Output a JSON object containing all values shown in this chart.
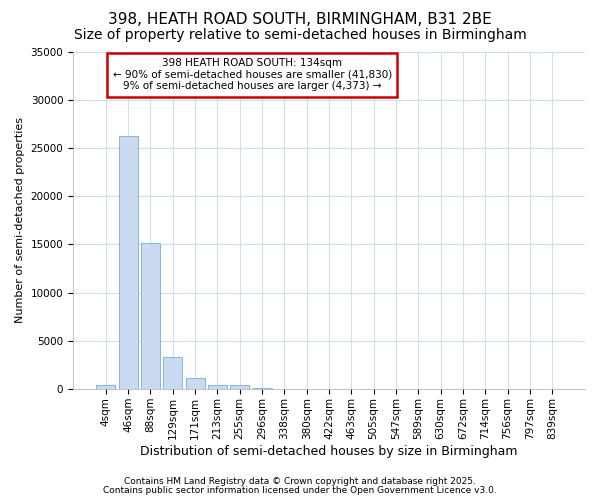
{
  "title1": "398, HEATH ROAD SOUTH, BIRMINGHAM, B31 2BE",
  "title2": "Size of property relative to semi-detached houses in Birmingham",
  "xlabel": "Distribution of semi-detached houses by size in Birmingham",
  "ylabel": "Number of semi-detached properties",
  "categories": [
    "4sqm",
    "46sqm",
    "88sqm",
    "129sqm",
    "171sqm",
    "213sqm",
    "255sqm",
    "296sqm",
    "338sqm",
    "380sqm",
    "422sqm",
    "463sqm",
    "505sqm",
    "547sqm",
    "589sqm",
    "630sqm",
    "672sqm",
    "714sqm",
    "756sqm",
    "797sqm",
    "839sqm"
  ],
  "values": [
    400,
    26200,
    15200,
    3300,
    1200,
    400,
    400,
    80,
    20,
    10,
    5,
    3,
    3,
    3,
    3,
    3,
    3,
    3,
    3,
    3,
    3
  ],
  "bar_color": "#c8d9f0",
  "bar_edge_color": "#7aaed6",
  "ylim": [
    0,
    35000
  ],
  "yticks": [
    0,
    5000,
    10000,
    15000,
    20000,
    25000,
    30000,
    35000
  ],
  "annotation_text": "398 HEATH ROAD SOUTH: 134sqm\n← 90% of semi-detached houses are smaller (41,830)\n9% of semi-detached houses are larger (4,373) →",
  "annotation_box_color": "#ffffff",
  "annotation_box_edge": "#cc0000",
  "background_color": "#ffffff",
  "grid_color": "#d0dff0",
  "footer1": "Contains HM Land Registry data © Crown copyright and database right 2025.",
  "footer2": "Contains public sector information licensed under the Open Government Licence v3.0.",
  "title_fontsize": 11,
  "subtitle_fontsize": 10,
  "tick_fontsize": 7.5,
  "ylabel_fontsize": 8,
  "xlabel_fontsize": 9
}
